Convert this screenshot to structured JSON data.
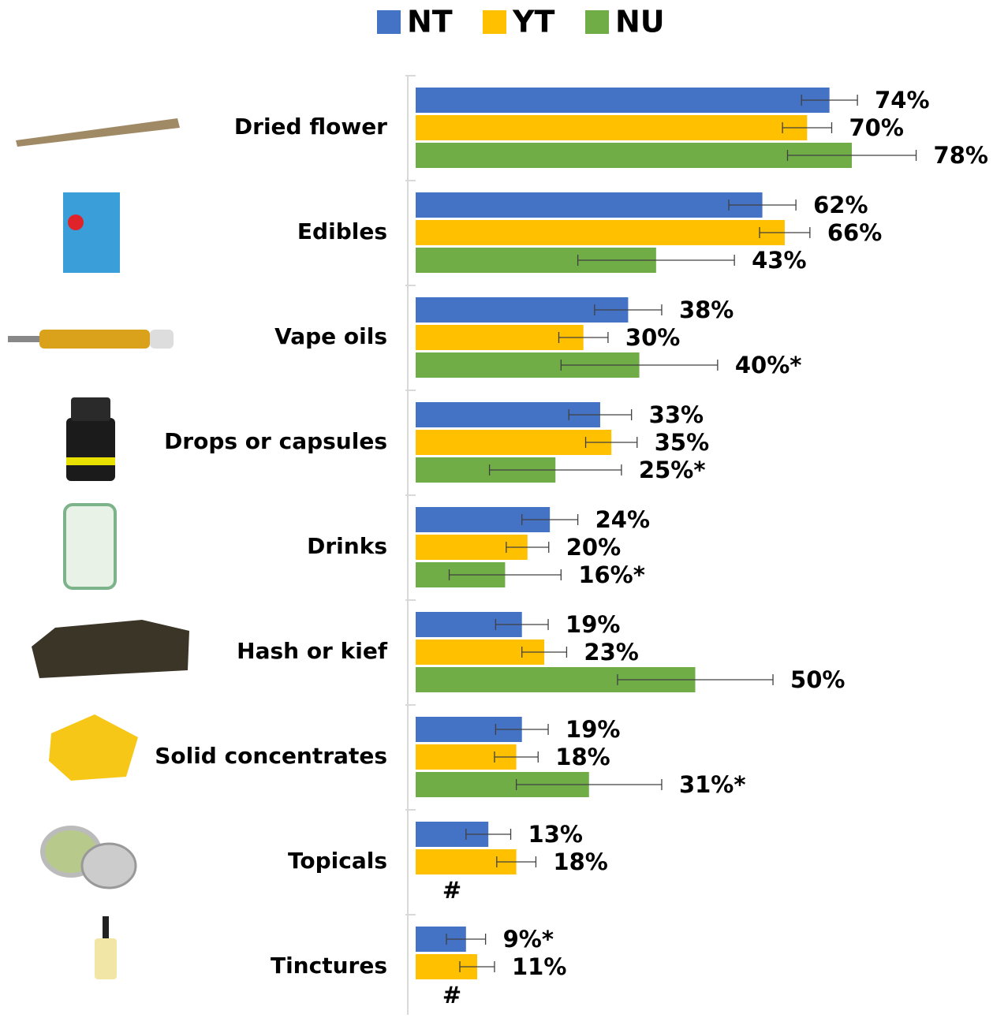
{
  "chart_data": {
    "type": "bar",
    "orientation": "horizontal",
    "categories": [
      "Dried flower",
      "Edibles",
      "Vape oils",
      "Drops or capsules",
      "Drinks",
      "Hash or kief",
      "Solid concentrates",
      "Topicals",
      "Tinctures"
    ],
    "series": [
      {
        "name": "NT",
        "color": "#4472c4",
        "values": [
          74,
          62,
          38,
          33,
          24,
          19,
          19,
          13,
          9
        ],
        "errors": [
          5,
          6,
          6,
          5.6,
          5,
          4.7,
          4.7,
          4,
          3.5
        ],
        "value_labels": [
          "74%",
          "62%",
          "38%",
          "33%",
          "24%",
          "19%",
          "19%",
          "13%",
          "9%*"
        ]
      },
      {
        "name": "YT",
        "color": "#ffc000",
        "values": [
          70,
          66,
          30,
          35,
          20,
          23,
          18,
          18,
          11
        ],
        "errors": [
          4.4,
          4.5,
          4.4,
          4.6,
          3.8,
          4,
          3.9,
          3.5,
          3.1
        ],
        "value_labels": [
          "70%",
          "66%",
          "30%",
          "35%",
          "20%",
          "23%",
          "18%",
          "18%",
          "11%"
        ]
      },
      {
        "name": "NU",
        "color": "#70ad47",
        "values": [
          78,
          43,
          40,
          25,
          16,
          50,
          31,
          null,
          null
        ],
        "errors": [
          11.5,
          14,
          14,
          11.8,
          10,
          13.9,
          13,
          null,
          null
        ],
        "value_labels": [
          "78%",
          "43%",
          "40%*",
          "25%*",
          "16%*",
          "50%",
          "31%*",
          "#",
          "#"
        ]
      }
    ],
    "xlim": [
      0,
      100
    ]
  }
}
